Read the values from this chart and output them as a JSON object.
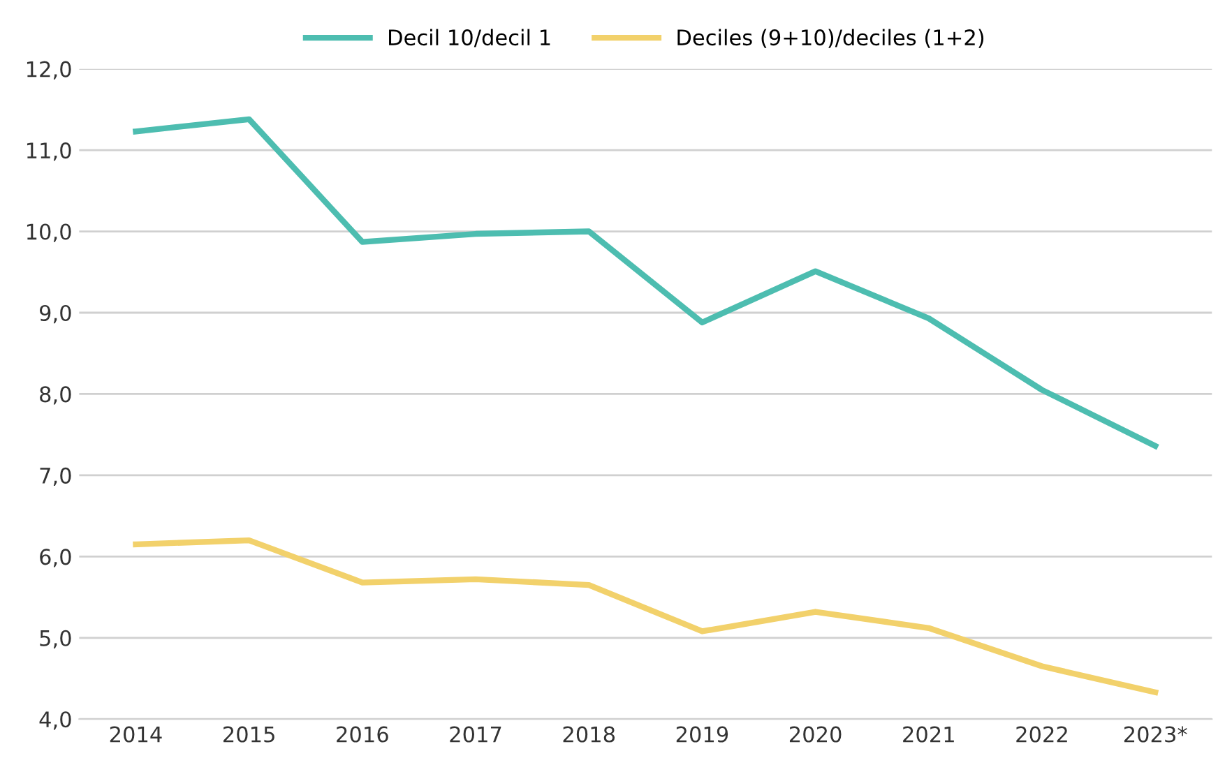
{
  "chart_data": {
    "type": "line",
    "categories": [
      "2014",
      "2015",
      "2016",
      "2017",
      "2018",
      "2019",
      "2020",
      "2021",
      "2022",
      "2023*"
    ],
    "series": [
      {
        "name": "Decil 10/decil 1",
        "color": "#4dbdb0",
        "values": [
          11.23,
          11.38,
          9.87,
          9.97,
          10.0,
          8.88,
          9.51,
          8.93,
          8.05,
          7.36
        ]
      },
      {
        "name": "Deciles (9+10)/deciles (1+2)",
        "color": "#f2d16b",
        "values": [
          6.15,
          6.2,
          5.68,
          5.72,
          5.65,
          5.08,
          5.32,
          5.12,
          4.65,
          4.33
        ]
      }
    ],
    "ylim": [
      4,
      12
    ],
    "yticks": [
      {
        "value": 4,
        "label": "4,0"
      },
      {
        "value": 5,
        "label": "5,0"
      },
      {
        "value": 6,
        "label": "6,0"
      },
      {
        "value": 7,
        "label": "7,0"
      },
      {
        "value": 8,
        "label": "8,0"
      },
      {
        "value": 9,
        "label": "9,0"
      },
      {
        "value": 10,
        "label": "10,0"
      },
      {
        "value": 11,
        "label": "11,0"
      },
      {
        "value": 12,
        "label": "12,0"
      }
    ],
    "grid": "y",
    "legend": "top",
    "marker": "none",
    "line_style": "solid"
  }
}
